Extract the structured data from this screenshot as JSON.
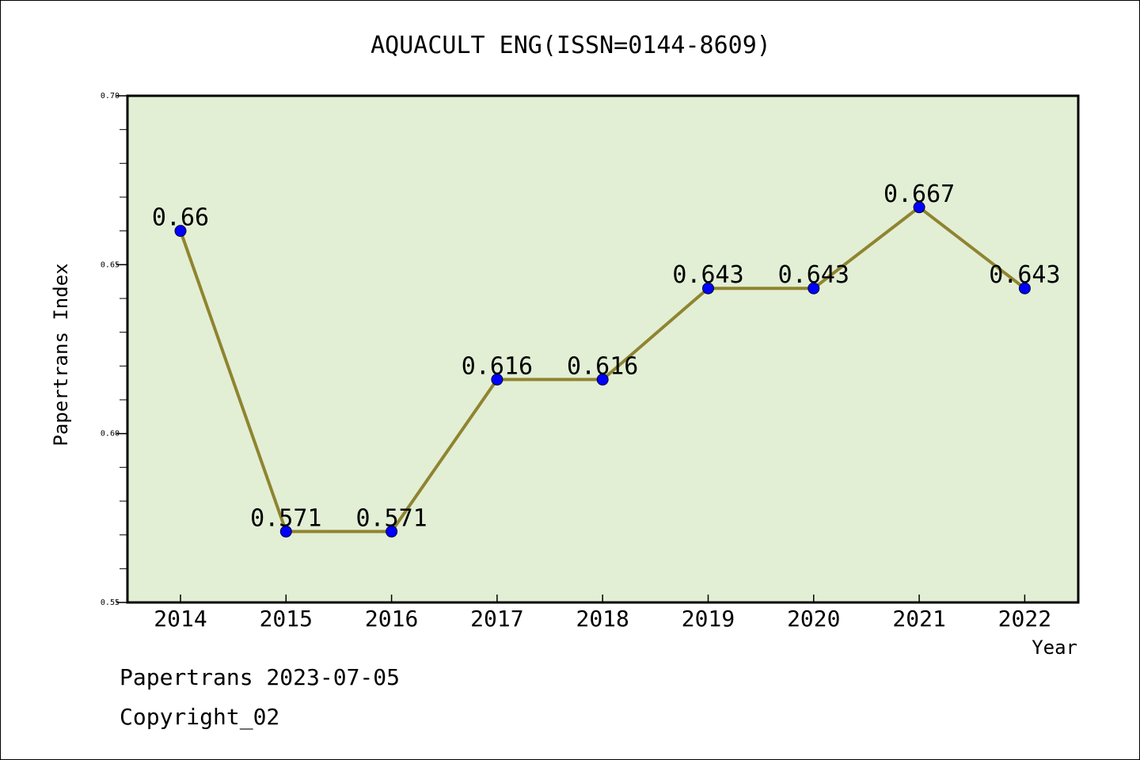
{
  "chart_data": {
    "type": "line",
    "title": "AQUACULT ENG(ISSN=0144-8609)",
    "xlabel": "Year",
    "ylabel": "Papertrans Index",
    "x": [
      "2014",
      "2015",
      "2016",
      "2017",
      "2018",
      "2019",
      "2020",
      "2021",
      "2022"
    ],
    "values": [
      0.66,
      0.571,
      0.571,
      0.616,
      0.616,
      0.643,
      0.643,
      0.667,
      0.643
    ],
    "data_labels": [
      "0.66",
      "0.571",
      "0.571",
      "0.616",
      "0.616",
      "0.643",
      "0.643",
      "0.667",
      "0.643"
    ],
    "ylim": [
      0.55,
      0.7
    ],
    "yticks": [
      0.55,
      0.6,
      0.65,
      0.7
    ],
    "ytick_labels": [
      "0.55",
      "0.60",
      "0.65",
      "0.70"
    ],
    "grid": false,
    "legend": "none",
    "colors": {
      "plot_background": "#e2efd5",
      "line": "#8f8430",
      "marker": "#0000ff"
    }
  },
  "footer": {
    "line1": "Papertrans 2023-07-05",
    "line2": "Copyright_02"
  }
}
